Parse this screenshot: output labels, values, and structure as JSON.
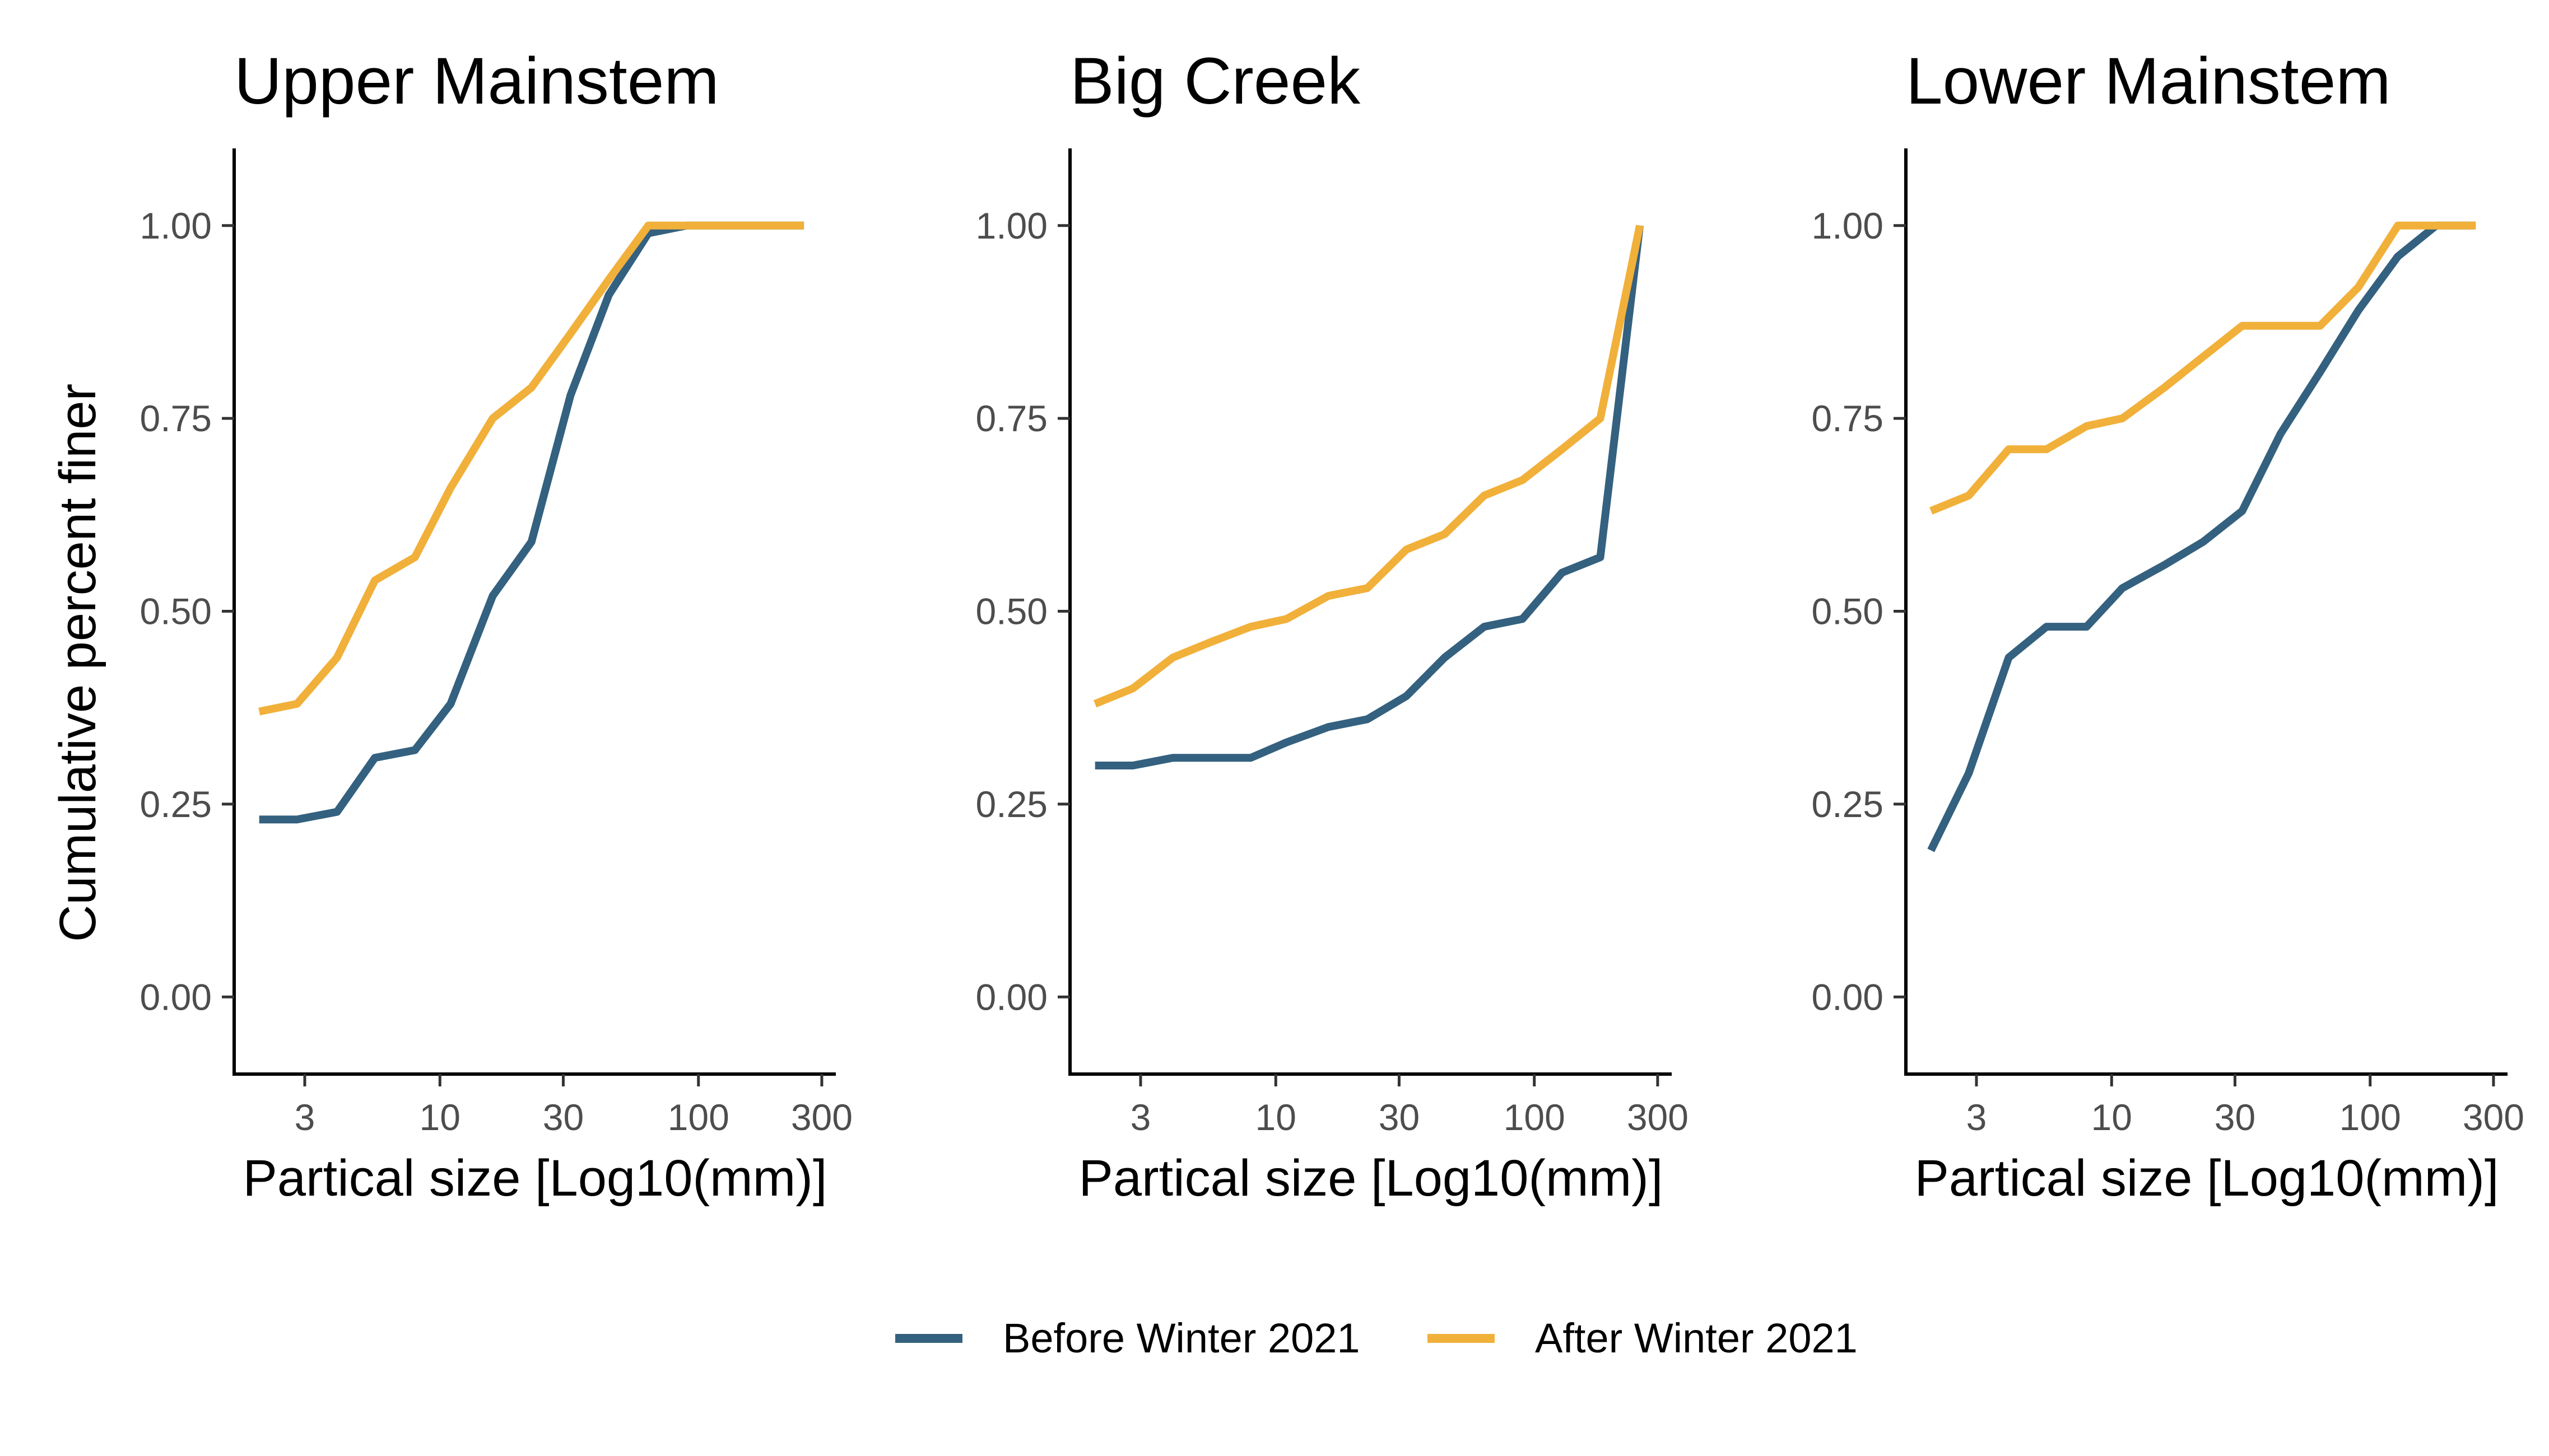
{
  "chart_data": [
    {
      "type": "line",
      "title": "Upper Mainstem",
      "xlabel": "Partical size [Log10(mm)]",
      "ylabel": "Cumulative percent finer",
      "xscale": "log10",
      "xlim": [
        1.6,
        340
      ],
      "ylim": [
        -0.1,
        1.1
      ],
      "xticks": [
        3,
        10,
        30,
        100,
        300
      ],
      "xtick_labels": [
        "3",
        "10",
        "30",
        "100",
        "300"
      ],
      "yticks": [
        0,
        0.25,
        0.5,
        0.75,
        1
      ],
      "ytick_labels": [
        "0.00",
        "0.25",
        "0.50",
        "0.75",
        "1.00"
      ],
      "series": [
        {
          "name": "Before Winter 2021",
          "color": "#34617f",
          "x": [
            2,
            2.8,
            4,
            5.6,
            8,
            11,
            16,
            22.6,
            32,
            45,
            64,
            90,
            128,
            180,
            256
          ],
          "y": [
            0.23,
            0.23,
            0.24,
            0.31,
            0.32,
            0.38,
            0.52,
            0.59,
            0.78,
            0.91,
            0.99,
            1.0,
            1.0,
            1.0,
            1.0
          ]
        },
        {
          "name": "After Winter 2021",
          "color": "#f1b03a",
          "x": [
            2,
            2.8,
            4,
            5.6,
            8,
            11,
            16,
            22.6,
            32,
            45,
            64,
            90,
            128,
            180,
            256
          ],
          "y": [
            0.37,
            0.38,
            0.44,
            0.54,
            0.57,
            0.66,
            0.75,
            0.79,
            0.86,
            0.93,
            1.0,
            1.0,
            1.0,
            1.0,
            1.0
          ]
        }
      ]
    },
    {
      "type": "line",
      "title": "Big Creek",
      "xlabel": "Partical size [Log10(mm)]",
      "ylabel": "",
      "xscale": "log10",
      "xlim": [
        1.6,
        340
      ],
      "ylim": [
        -0.1,
        1.1
      ],
      "xticks": [
        3,
        10,
        30,
        100,
        300
      ],
      "xtick_labels": [
        "3",
        "10",
        "30",
        "100",
        "300"
      ],
      "yticks": [
        0,
        0.25,
        0.5,
        0.75,
        1
      ],
      "ytick_labels": [
        "0.00",
        "0.25",
        "0.50",
        "0.75",
        "1.00"
      ],
      "series": [
        {
          "name": "Before Winter 2021",
          "color": "#34617f",
          "x": [
            2,
            2.8,
            4,
            5.6,
            8,
            11,
            16,
            22.6,
            32,
            45,
            64,
            90,
            128,
            180,
            256
          ],
          "y": [
            0.3,
            0.3,
            0.31,
            0.31,
            0.31,
            0.33,
            0.35,
            0.36,
            0.39,
            0.44,
            0.48,
            0.49,
            0.55,
            0.57,
            1.0
          ]
        },
        {
          "name": "After Winter 2021",
          "color": "#f1b03a",
          "x": [
            2,
            2.8,
            4,
            5.6,
            8,
            11,
            16,
            22.6,
            32,
            45,
            64,
            90,
            128,
            180,
            256
          ],
          "y": [
            0.38,
            0.4,
            0.44,
            0.46,
            0.48,
            0.49,
            0.52,
            0.53,
            0.58,
            0.6,
            0.65,
            0.67,
            0.71,
            0.75,
            1.0
          ]
        }
      ]
    },
    {
      "type": "line",
      "title": "Lower Mainstem",
      "xlabel": "Partical size [Log10(mm)]",
      "ylabel": "",
      "xscale": "log10",
      "xlim": [
        1.6,
        340
      ],
      "ylim": [
        -0.1,
        1.1
      ],
      "xticks": [
        3,
        10,
        30,
        100,
        300
      ],
      "xtick_labels": [
        "3",
        "10",
        "30",
        "100",
        "300"
      ],
      "yticks": [
        0,
        0.25,
        0.5,
        0.75,
        1
      ],
      "ytick_labels": [
        "0.00",
        "0.25",
        "0.50",
        "0.75",
        "1.00"
      ],
      "series": [
        {
          "name": "Before Winter 2021",
          "color": "#34617f",
          "x": [
            2,
            2.8,
            4,
            5.6,
            8,
            11,
            16,
            22.6,
            32,
            45,
            64,
            90,
            128,
            180,
            256
          ],
          "y": [
            0.19,
            0.29,
            0.44,
            0.48,
            0.48,
            0.53,
            0.56,
            0.59,
            0.63,
            0.73,
            0.81,
            0.89,
            0.96,
            1.0,
            1.0
          ]
        },
        {
          "name": "After Winter 2021",
          "color": "#f1b03a",
          "x": [
            2,
            2.8,
            4,
            5.6,
            8,
            11,
            16,
            22.6,
            32,
            45,
            64,
            90,
            128,
            180,
            256
          ],
          "y": [
            0.63,
            0.65,
            0.71,
            0.71,
            0.74,
            0.75,
            0.79,
            0.83,
            0.87,
            0.87,
            0.87,
            0.92,
            1.0,
            1.0,
            1.0
          ]
        }
      ]
    }
  ],
  "legend": {
    "placement": "bottom",
    "items": [
      {
        "label": "Before Winter 2021",
        "color": "#34617f"
      },
      {
        "label": "After Winter 2021",
        "color": "#f1b03a"
      }
    ]
  }
}
